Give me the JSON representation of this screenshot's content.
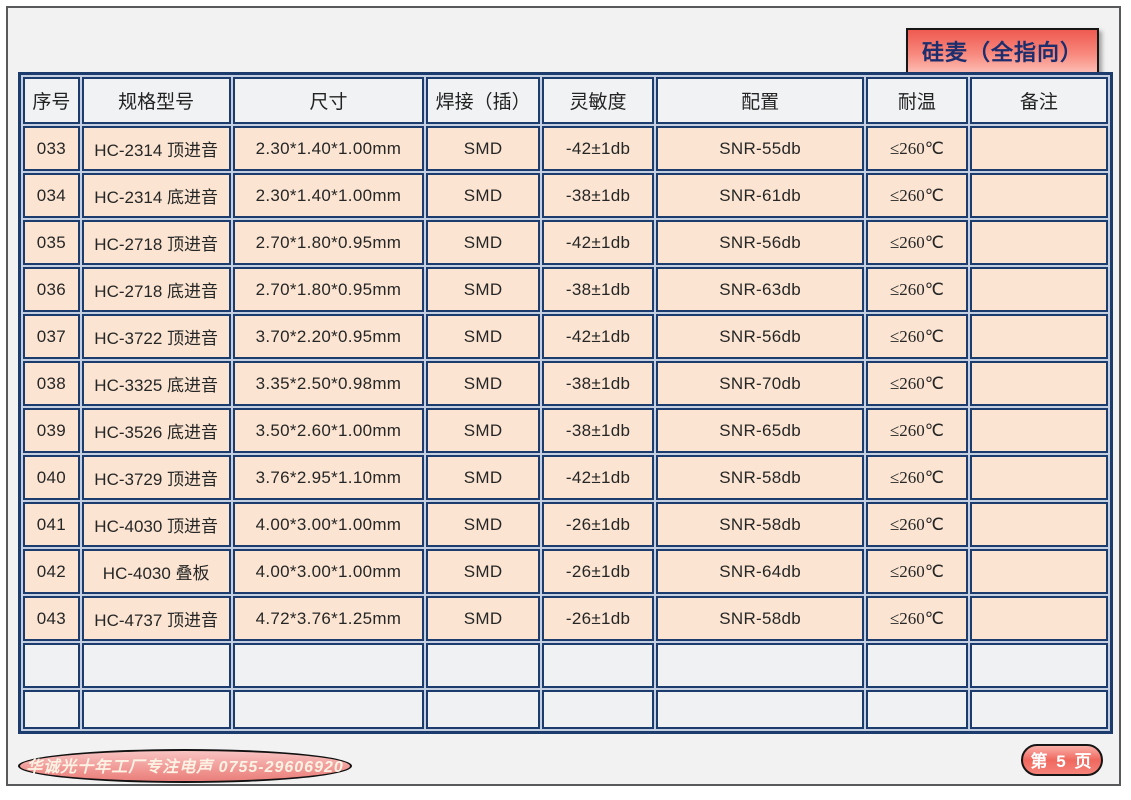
{
  "badge": {
    "label": "硅麦（全指向）"
  },
  "table": {
    "headers": [
      "序号",
      "规格型号",
      "尺寸",
      "焊接（插）",
      "灵敏度",
      "配置",
      "耐温",
      "备注"
    ],
    "rows": [
      [
        "033",
        "HC-2314 顶进音",
        "2.30*1.40*1.00mm",
        "SMD",
        "-42±1db",
        "SNR-55db",
        "≤260℃",
        ""
      ],
      [
        "034",
        "HC-2314 底进音",
        "2.30*1.40*1.00mm",
        "SMD",
        "-38±1db",
        "SNR-61db",
        "≤260℃",
        ""
      ],
      [
        "035",
        "HC-2718 顶进音",
        "2.70*1.80*0.95mm",
        "SMD",
        "-42±1db",
        "SNR-56db",
        "≤260℃",
        ""
      ],
      [
        "036",
        "HC-2718 底进音",
        "2.70*1.80*0.95mm",
        "SMD",
        "-38±1db",
        "SNR-63db",
        "≤260℃",
        ""
      ],
      [
        "037",
        "HC-3722 顶进音",
        "3.70*2.20*0.95mm",
        "SMD",
        "-42±1db",
        "SNR-56db",
        "≤260℃",
        ""
      ],
      [
        "038",
        "HC-3325 底进音",
        "3.35*2.50*0.98mm",
        "SMD",
        "-38±1db",
        "SNR-70db",
        "≤260℃",
        ""
      ],
      [
        "039",
        "HC-3526 底进音",
        "3.50*2.60*1.00mm",
        "SMD",
        "-38±1db",
        "SNR-65db",
        "≤260℃",
        ""
      ],
      [
        "040",
        "HC-3729 顶进音",
        "3.76*2.95*1.10mm",
        "SMD",
        "-42±1db",
        "SNR-58db",
        "≤260℃",
        ""
      ],
      [
        "041",
        "HC-4030 顶进音",
        "4.00*3.00*1.00mm",
        "SMD",
        "-26±1db",
        "SNR-58db",
        "≤260℃",
        ""
      ],
      [
        "042",
        "HC-4030 叠板",
        "4.00*3.00*1.00mm",
        "SMD",
        "-26±1db",
        "SNR-64db",
        "≤260℃",
        ""
      ],
      [
        "043",
        "HC-4737 顶进音",
        "4.72*3.76*1.25mm",
        "SMD",
        "-26±1db",
        "SNR-58db",
        "≤260℃",
        ""
      ]
    ],
    "empty_row_count": 2
  },
  "footer": {
    "slogan": "华诚光十年工厂专注电声  0755-29606920",
    "page_label": "第 5 页"
  },
  "colors": {
    "table_border": "#1d3c6e",
    "cell_gap": "#c4d0e2",
    "data_row_bg": "#fbe5d2",
    "header_row_bg": "#f1f2f4",
    "badge_red": "#ef5a50",
    "badge_text": "#1c2e6e",
    "pink_pill": "#f0685e",
    "page_bg": "#f2f2f2"
  }
}
